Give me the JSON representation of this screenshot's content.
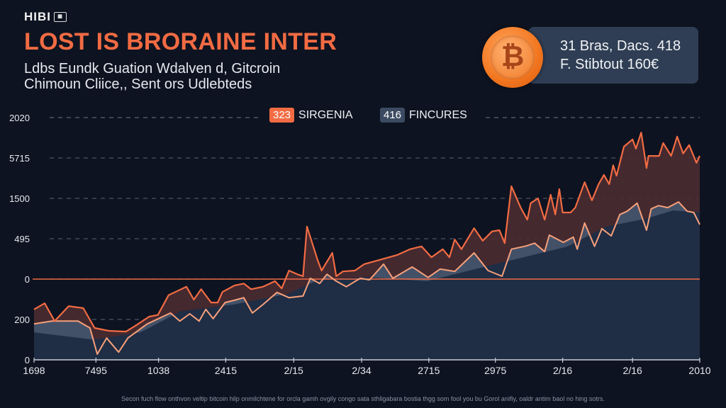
{
  "header": {
    "logo": "HIBI",
    "title": "LOST IS BRORAINE INTER",
    "subtitle_line1": "Ldbs Eundk Guation Wdalven d, Gitcroin",
    "subtitle_line2": "Chimoun Cliice,, Sent ors Udlebteds"
  },
  "info_card": {
    "icon": "bitcoin-icon",
    "coin_symbol": "₿",
    "line1": "31 Bras, Dacs. 418",
    "line2": "F. Stibtout 160€"
  },
  "footer_note": "Secon fuch flow onthvon veltip bitcoin hilp onmilchtene for orcla gamh ovgily congo sata sthligabara bostia thgg som fool you bu Gorol anifiy, oaldr antim baol no hing sotrs.",
  "colors": {
    "accent": "#f26b43",
    "upper_fill": "#4a2c31",
    "mid_fill": "#4d5d76",
    "base_fill": "#1f2d45",
    "lower_line": "#f7a07a"
  },
  "chart_data": {
    "type": "area",
    "title": "LOST IS BRORAINE INTER",
    "xlabel": "",
    "ylabel": "",
    "xlim": [
      0,
      100
    ],
    "ylim": [
      0,
      6
    ],
    "grid": true,
    "legend_placement": "top-center",
    "legend": [
      {
        "badge": "323",
        "label": "SIRGENIA",
        "color": "#f26b43"
      },
      {
        "badge": "416",
        "label": "FINCURES",
        "color": "#3c4b62"
      }
    ],
    "y_ticks": [
      {
        "value": 6,
        "label": "2020"
      },
      {
        "value": 5,
        "label": "5715"
      },
      {
        "value": 4,
        "label": "1500"
      },
      {
        "value": 3,
        "label": "495"
      },
      {
        "value": 2,
        "label": "0"
      },
      {
        "value": 1,
        "label": "200"
      },
      {
        "value": 0,
        "label": "0"
      }
    ],
    "x_ticks": [
      {
        "value": 0,
        "label": "1698"
      },
      {
        "value": 9.3,
        "label": "7495"
      },
      {
        "value": 18.7,
        "label": "1038"
      },
      {
        "value": 28.8,
        "label": "2415"
      },
      {
        "value": 39.0,
        "label": "2/15"
      },
      {
        "value": 49.2,
        "label": "2/34"
      },
      {
        "value": 59.3,
        "label": "2715"
      },
      {
        "value": 69.3,
        "label": "2975"
      },
      {
        "value": 79.4,
        "label": "2/16"
      },
      {
        "value": 89.9,
        "label": "2/16"
      },
      {
        "value": 100,
        "label": "2010"
      }
    ],
    "reference_line": 2,
    "series": [
      {
        "name": "SIRGENIA",
        "role": "upper",
        "x": [
          0,
          1.6,
          3.1,
          5.2,
          7.4,
          9.1,
          11.2,
          13.8,
          15.2,
          17.3,
          18.6,
          20.2,
          22.9,
          24.0,
          25.1,
          26.6,
          27.6,
          28.3,
          30.1,
          31.5,
          32.6,
          34.4,
          36.2,
          37.2,
          38.3,
          39.7,
          40.4,
          41.0,
          42.6,
          43.2,
          44.8,
          45.4,
          46.4,
          48.2,
          49.6,
          51.8,
          54.6,
          56.5,
          58.2,
          59.7,
          61.4,
          62.4,
          63.2,
          64.2,
          66.1,
          67.4,
          68.8,
          69.9,
          70.7,
          71.7,
          73.1,
          74.1,
          74.6,
          75.7,
          76.7,
          77.6,
          78.3,
          78.9,
          79.4,
          80.6,
          81.3,
          82.7,
          83.8,
          84.8,
          85.6,
          86.4,
          87.0,
          87.5,
          88.6,
          89.9,
          90.4,
          91.2,
          92.0,
          92.3,
          93.9,
          94.5,
          95.7,
          96.6,
          97.5,
          98.4,
          99.5,
          100
        ],
        "y": [
          1.25,
          1.4,
          0.96,
          1.33,
          1.28,
          0.79,
          0.72,
          0.7,
          0.84,
          1.07,
          1.11,
          1.6,
          1.81,
          1.49,
          1.75,
          1.42,
          1.42,
          1.68,
          1.84,
          1.89,
          1.75,
          1.81,
          1.95,
          1.77,
          2.21,
          2.11,
          2.07,
          3.3,
          2.47,
          2.21,
          2.65,
          2.07,
          2.19,
          2.21,
          2.37,
          2.47,
          2.6,
          2.74,
          2.81,
          2.54,
          2.74,
          2.54,
          2.98,
          2.74,
          3.26,
          2.95,
          3.18,
          3.21,
          2.89,
          4.3,
          3.77,
          3.47,
          3.88,
          4.0,
          3.47,
          4.09,
          3.6,
          4.23,
          3.65,
          3.65,
          3.77,
          4.4,
          3.95,
          4.35,
          4.58,
          4.35,
          4.82,
          4.56,
          5.28,
          5.46,
          5.23,
          5.63,
          4.75,
          5.05,
          5.05,
          5.37,
          5.05,
          5.53,
          5.11,
          5.32,
          4.88,
          5.05
        ]
      },
      {
        "name": "FINCURES",
        "role": "lower",
        "x": [
          0,
          2.7,
          6.6,
          8.4,
          9.5,
          10.9,
          12.7,
          14.1,
          17.0,
          20.5,
          21.9,
          23.4,
          24.8,
          25.8,
          26.9,
          28.7,
          30.4,
          31.5,
          32.8,
          34.4,
          36.5,
          38.3,
          40.4,
          41.5,
          42.9,
          44.0,
          45.4,
          46.9,
          49.0,
          50.4,
          52.5,
          53.9,
          56.8,
          59.2,
          61.0,
          63.2,
          66.1,
          68.2,
          70.3,
          71.7,
          73.9,
          75.2,
          76.7,
          77.4,
          79.5,
          81.0,
          81.6,
          82.7,
          84.2,
          85.3,
          86.7,
          88.0,
          89.1,
          90.6,
          92.0,
          92.7,
          93.8,
          95.2,
          96.8,
          98.1,
          99.1,
          100
        ],
        "y": [
          0.89,
          0.96,
          0.96,
          0.79,
          0.14,
          0.54,
          0.19,
          0.54,
          0.89,
          1.16,
          0.96,
          1.14,
          0.96,
          1.25,
          1.02,
          1.42,
          1.49,
          1.54,
          1.16,
          1.37,
          1.67,
          1.54,
          1.58,
          2.02,
          1.89,
          2.12,
          1.95,
          1.81,
          2.02,
          1.98,
          2.37,
          2.02,
          2.3,
          2.04,
          2.25,
          2.19,
          2.65,
          2.21,
          2.07,
          2.74,
          2.82,
          2.89,
          2.68,
          3.09,
          2.91,
          3.04,
          2.74,
          3.39,
          2.81,
          3.25,
          3.07,
          3.6,
          3.68,
          3.88,
          3.21,
          3.74,
          3.82,
          3.77,
          3.91,
          3.68,
          3.65,
          3.35
        ]
      },
      {
        "name": "base",
        "role": "base-area",
        "x": [
          0,
          9,
          16,
          22,
          30,
          38,
          43,
          50,
          59,
          70,
          80,
          86,
          92,
          96,
          100
        ],
        "y": [
          0.68,
          0.5,
          0.68,
          1.2,
          1.37,
          1.63,
          2.0,
          2.05,
          1.95,
          2.4,
          2.8,
          3.3,
          3.5,
          3.7,
          3.65
        ]
      }
    ]
  }
}
